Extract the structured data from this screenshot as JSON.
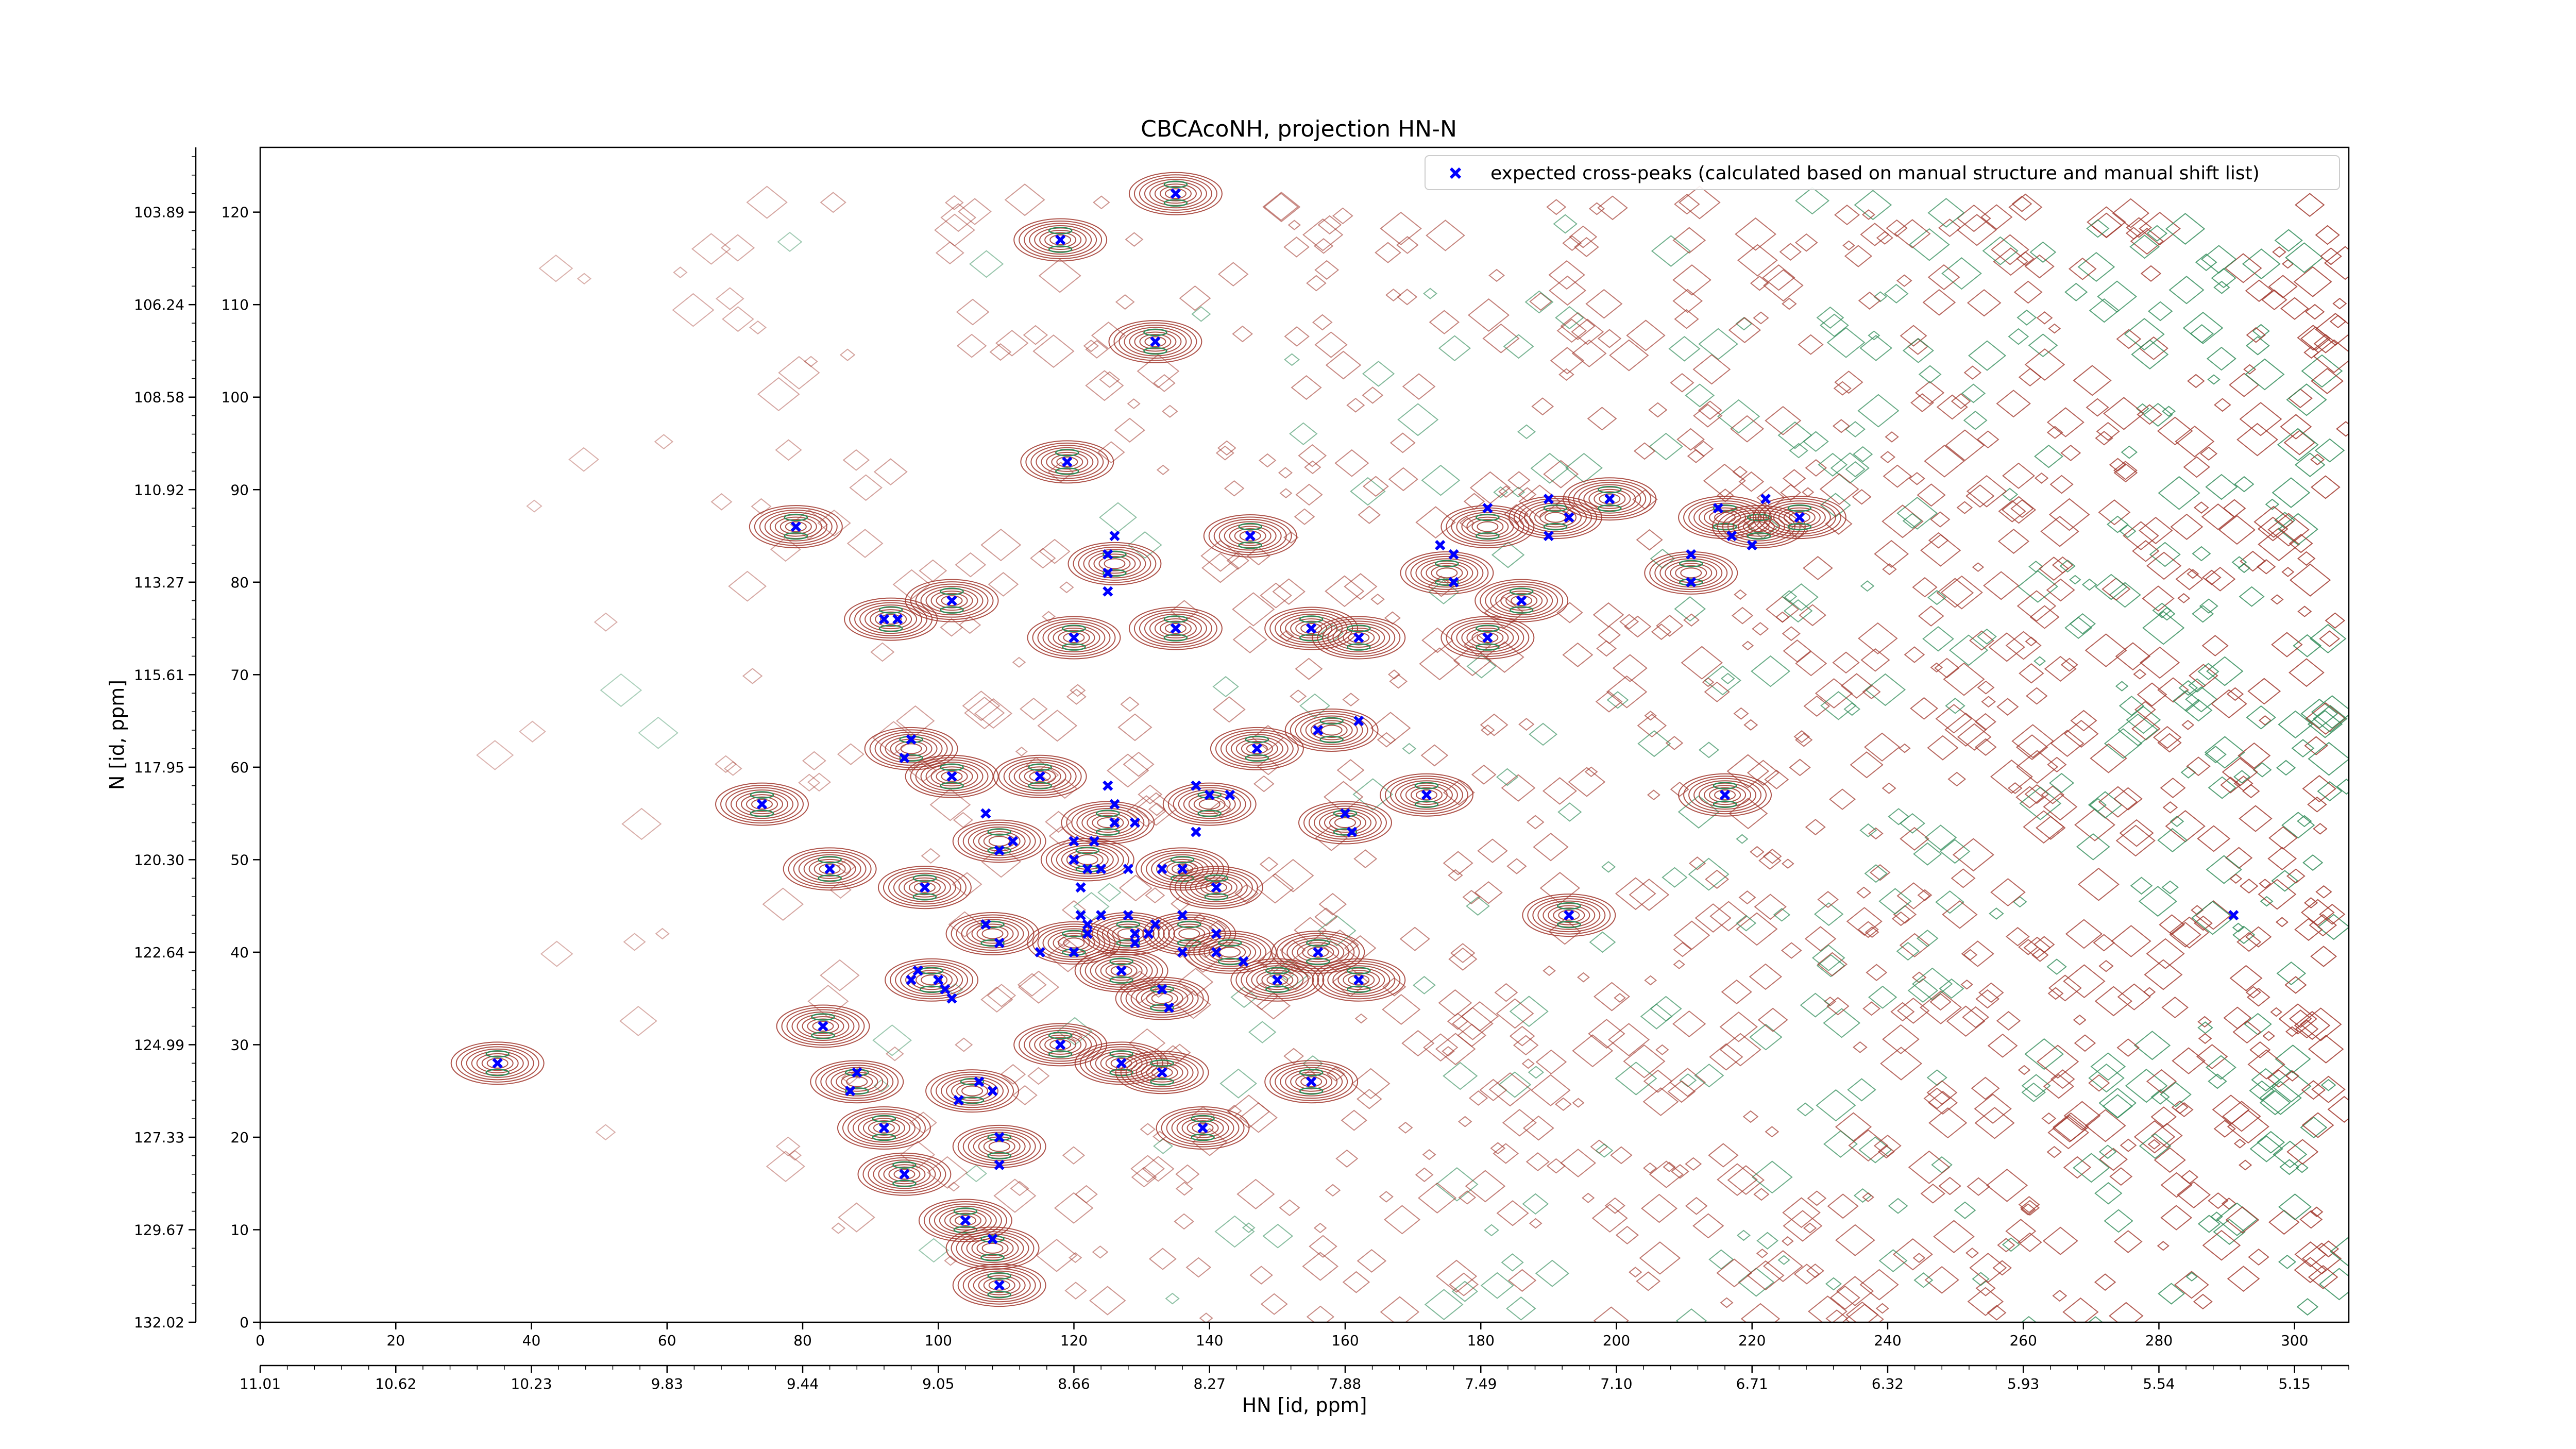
{
  "colors": {
    "contour_positive": "#a0352a",
    "contour_negative": "#2e8b57",
    "peak_marker": "#0000ff",
    "frame": "#000000",
    "legend_border": "#cccccc"
  },
  "chart_data": {
    "type": "scatter",
    "title": "CBCAcoNH, projection HN-N",
    "xlabel": "HN [id, ppm]",
    "ylabel": "N [id, ppm]",
    "grid": false,
    "legend_position": "top-right",
    "xlim": [
      0,
      308
    ],
    "ylim": [
      0,
      127
    ],
    "x_index_ticks": [
      0,
      20,
      40,
      60,
      80,
      100,
      120,
      140,
      160,
      180,
      200,
      220,
      240,
      260,
      280,
      300
    ],
    "x_ppm_ticks": [
      {
        "at": 0,
        "label": "11.01"
      },
      {
        "at": 20,
        "label": "10.62"
      },
      {
        "at": 40,
        "label": "10.23"
      },
      {
        "at": 60,
        "label": "9.83"
      },
      {
        "at": 80,
        "label": "9.44"
      },
      {
        "at": 100,
        "label": "9.05"
      },
      {
        "at": 120,
        "label": "8.66"
      },
      {
        "at": 140,
        "label": "8.27"
      },
      {
        "at": 160,
        "label": "7.88"
      },
      {
        "at": 180,
        "label": "7.49"
      },
      {
        "at": 200,
        "label": "7.10"
      },
      {
        "at": 220,
        "label": "6.71"
      },
      {
        "at": 240,
        "label": "6.32"
      },
      {
        "at": 260,
        "label": "5.93"
      },
      {
        "at": 280,
        "label": "5.54"
      },
      {
        "at": 300,
        "label": "5.15"
      }
    ],
    "y_index_ticks": [
      0,
      10,
      20,
      30,
      40,
      50,
      60,
      70,
      80,
      90,
      100,
      110,
      120
    ],
    "y_ppm_ticks": [
      {
        "at": 0,
        "label": "132.02"
      },
      {
        "at": 10,
        "label": "129.67"
      },
      {
        "at": 20,
        "label": "127.33"
      },
      {
        "at": 30,
        "label": "124.99"
      },
      {
        "at": 40,
        "label": "122.64"
      },
      {
        "at": 50,
        "label": "120.30"
      },
      {
        "at": 60,
        "label": "117.95"
      },
      {
        "at": 70,
        "label": "115.61"
      },
      {
        "at": 80,
        "label": "113.27"
      },
      {
        "at": 90,
        "label": "110.92"
      },
      {
        "at": 100,
        "label": "108.58"
      },
      {
        "at": 110,
        "label": "106.24"
      },
      {
        "at": 120,
        "label": "103.89"
      }
    ],
    "series": [
      {
        "name": "expected cross-peaks (calculated based on manual structure and manual shift list)",
        "marker": "x",
        "points": [
          {
            "x": 135,
            "y": 122
          },
          {
            "x": 118,
            "y": 117
          },
          {
            "x": 132,
            "y": 106
          },
          {
            "x": 119,
            "y": 93
          },
          {
            "x": 79,
            "y": 86
          },
          {
            "x": 146,
            "y": 85
          },
          {
            "x": 126,
            "y": 85
          },
          {
            "x": 125,
            "y": 83
          },
          {
            "x": 125,
            "y": 81
          },
          {
            "x": 125,
            "y": 79
          },
          {
            "x": 102,
            "y": 78
          },
          {
            "x": 92,
            "y": 76
          },
          {
            "x": 94,
            "y": 76
          },
          {
            "x": 135,
            "y": 75
          },
          {
            "x": 155,
            "y": 75
          },
          {
            "x": 120,
            "y": 74
          },
          {
            "x": 162,
            "y": 74
          },
          {
            "x": 174,
            "y": 84
          },
          {
            "x": 176,
            "y": 83
          },
          {
            "x": 176,
            "y": 80
          },
          {
            "x": 181,
            "y": 88
          },
          {
            "x": 190,
            "y": 89
          },
          {
            "x": 190,
            "y": 85
          },
          {
            "x": 193,
            "y": 87
          },
          {
            "x": 199,
            "y": 89
          },
          {
            "x": 181,
            "y": 74
          },
          {
            "x": 186,
            "y": 78
          },
          {
            "x": 211,
            "y": 83
          },
          {
            "x": 211,
            "y": 80
          },
          {
            "x": 215,
            "y": 88
          },
          {
            "x": 217,
            "y": 85
          },
          {
            "x": 220,
            "y": 84
          },
          {
            "x": 222,
            "y": 89
          },
          {
            "x": 227,
            "y": 87
          },
          {
            "x": 96,
            "y": 63
          },
          {
            "x": 95,
            "y": 61
          },
          {
            "x": 102,
            "y": 59
          },
          {
            "x": 115,
            "y": 59
          },
          {
            "x": 147,
            "y": 62
          },
          {
            "x": 156,
            "y": 64
          },
          {
            "x": 162,
            "y": 65
          },
          {
            "x": 74,
            "y": 56
          },
          {
            "x": 107,
            "y": 55
          },
          {
            "x": 111,
            "y": 52
          },
          {
            "x": 109,
            "y": 51
          },
          {
            "x": 125,
            "y": 58
          },
          {
            "x": 126,
            "y": 56
          },
          {
            "x": 126,
            "y": 54
          },
          {
            "x": 129,
            "y": 54
          },
          {
            "x": 123,
            "y": 52
          },
          {
            "x": 120,
            "y": 52
          },
          {
            "x": 120,
            "y": 50
          },
          {
            "x": 122,
            "y": 49
          },
          {
            "x": 124,
            "y": 49
          },
          {
            "x": 128,
            "y": 49
          },
          {
            "x": 138,
            "y": 58
          },
          {
            "x": 140,
            "y": 57
          },
          {
            "x": 143,
            "y": 57
          },
          {
            "x": 138,
            "y": 53
          },
          {
            "x": 133,
            "y": 49
          },
          {
            "x": 136,
            "y": 49
          },
          {
            "x": 141,
            "y": 47
          },
          {
            "x": 84,
            "y": 49
          },
          {
            "x": 98,
            "y": 47
          },
          {
            "x": 121,
            "y": 47
          },
          {
            "x": 160,
            "y": 55
          },
          {
            "x": 161,
            "y": 53
          },
          {
            "x": 172,
            "y": 57
          },
          {
            "x": 216,
            "y": 57
          },
          {
            "x": 107,
            "y": 43
          },
          {
            "x": 109,
            "y": 41
          },
          {
            "x": 115,
            "y": 40
          },
          {
            "x": 120,
            "y": 40
          },
          {
            "x": 122,
            "y": 43
          },
          {
            "x": 122,
            "y": 42
          },
          {
            "x": 121,
            "y": 44
          },
          {
            "x": 124,
            "y": 44
          },
          {
            "x": 128,
            "y": 44
          },
          {
            "x": 129,
            "y": 42
          },
          {
            "x": 129,
            "y": 41
          },
          {
            "x": 131,
            "y": 42
          },
          {
            "x": 132,
            "y": 43
          },
          {
            "x": 136,
            "y": 44
          },
          {
            "x": 136,
            "y": 40
          },
          {
            "x": 141,
            "y": 42
          },
          {
            "x": 141,
            "y": 40
          },
          {
            "x": 145,
            "y": 39
          },
          {
            "x": 127,
            "y": 38
          },
          {
            "x": 133,
            "y": 36
          },
          {
            "x": 134,
            "y": 34
          },
          {
            "x": 156,
            "y": 40
          },
          {
            "x": 150,
            "y": 37
          },
          {
            "x": 162,
            "y": 37
          },
          {
            "x": 97,
            "y": 38
          },
          {
            "x": 96,
            "y": 37
          },
          {
            "x": 100,
            "y": 37
          },
          {
            "x": 101,
            "y": 36
          },
          {
            "x": 102,
            "y": 35
          },
          {
            "x": 193,
            "y": 44
          },
          {
            "x": 291,
            "y": 44
          },
          {
            "x": 83,
            "y": 32
          },
          {
            "x": 35,
            "y": 28
          },
          {
            "x": 118,
            "y": 30
          },
          {
            "x": 127,
            "y": 28
          },
          {
            "x": 133,
            "y": 27
          },
          {
            "x": 88,
            "y": 27
          },
          {
            "x": 87,
            "y": 25
          },
          {
            "x": 106,
            "y": 26
          },
          {
            "x": 108,
            "y": 25
          },
          {
            "x": 103,
            "y": 24
          },
          {
            "x": 155,
            "y": 26
          },
          {
            "x": 92,
            "y": 21
          },
          {
            "x": 109,
            "y": 20
          },
          {
            "x": 139,
            "y": 21
          },
          {
            "x": 109,
            "y": 17
          },
          {
            "x": 95,
            "y": 16
          },
          {
            "x": 104,
            "y": 11
          },
          {
            "x": 108,
            "y": 9
          },
          {
            "x": 109,
            "y": 4
          }
        ]
      }
    ],
    "contour_clusters": [
      {
        "x": 135,
        "y": 122
      },
      {
        "x": 118,
        "y": 117
      },
      {
        "x": 132,
        "y": 106
      },
      {
        "x": 119,
        "y": 93
      },
      {
        "x": 79,
        "y": 86
      },
      {
        "x": 146,
        "y": 85
      },
      {
        "x": 126,
        "y": 82
      },
      {
        "x": 102,
        "y": 78
      },
      {
        "x": 93,
        "y": 76
      },
      {
        "x": 135,
        "y": 75
      },
      {
        "x": 155,
        "y": 75
      },
      {
        "x": 120,
        "y": 74
      },
      {
        "x": 162,
        "y": 74
      },
      {
        "x": 175,
        "y": 81
      },
      {
        "x": 181,
        "y": 86
      },
      {
        "x": 191,
        "y": 87
      },
      {
        "x": 199,
        "y": 89
      },
      {
        "x": 181,
        "y": 74
      },
      {
        "x": 186,
        "y": 78
      },
      {
        "x": 211,
        "y": 81
      },
      {
        "x": 216,
        "y": 87
      },
      {
        "x": 221,
        "y": 86
      },
      {
        "x": 227,
        "y": 87
      },
      {
        "x": 96,
        "y": 62
      },
      {
        "x": 102,
        "y": 59
      },
      {
        "x": 115,
        "y": 59
      },
      {
        "x": 147,
        "y": 62
      },
      {
        "x": 158,
        "y": 64
      },
      {
        "x": 74,
        "y": 56
      },
      {
        "x": 109,
        "y": 52
      },
      {
        "x": 125,
        "y": 54
      },
      {
        "x": 122,
        "y": 50
      },
      {
        "x": 140,
        "y": 56
      },
      {
        "x": 136,
        "y": 49
      },
      {
        "x": 141,
        "y": 47
      },
      {
        "x": 84,
        "y": 49
      },
      {
        "x": 98,
        "y": 47
      },
      {
        "x": 160,
        "y": 54
      },
      {
        "x": 172,
        "y": 57
      },
      {
        "x": 216,
        "y": 57
      },
      {
        "x": 108,
        "y": 42
      },
      {
        "x": 120,
        "y": 41
      },
      {
        "x": 128,
        "y": 42
      },
      {
        "x": 137,
        "y": 42
      },
      {
        "x": 143,
        "y": 40
      },
      {
        "x": 127,
        "y": 38
      },
      {
        "x": 133,
        "y": 35
      },
      {
        "x": 156,
        "y": 40
      },
      {
        "x": 150,
        "y": 37
      },
      {
        "x": 162,
        "y": 37
      },
      {
        "x": 99,
        "y": 37
      },
      {
        "x": 193,
        "y": 44
      },
      {
        "x": 83,
        "y": 32
      },
      {
        "x": 35,
        "y": 28
      },
      {
        "x": 118,
        "y": 30
      },
      {
        "x": 127,
        "y": 28
      },
      {
        "x": 133,
        "y": 27
      },
      {
        "x": 88,
        "y": 26
      },
      {
        "x": 105,
        "y": 25
      },
      {
        "x": 155,
        "y": 26
      },
      {
        "x": 92,
        "y": 21
      },
      {
        "x": 109,
        "y": 19
      },
      {
        "x": 139,
        "y": 21
      },
      {
        "x": 95,
        "y": 16
      },
      {
        "x": 104,
        "y": 11
      },
      {
        "x": 108,
        "y": 8
      },
      {
        "x": 109,
        "y": 4
      }
    ]
  }
}
